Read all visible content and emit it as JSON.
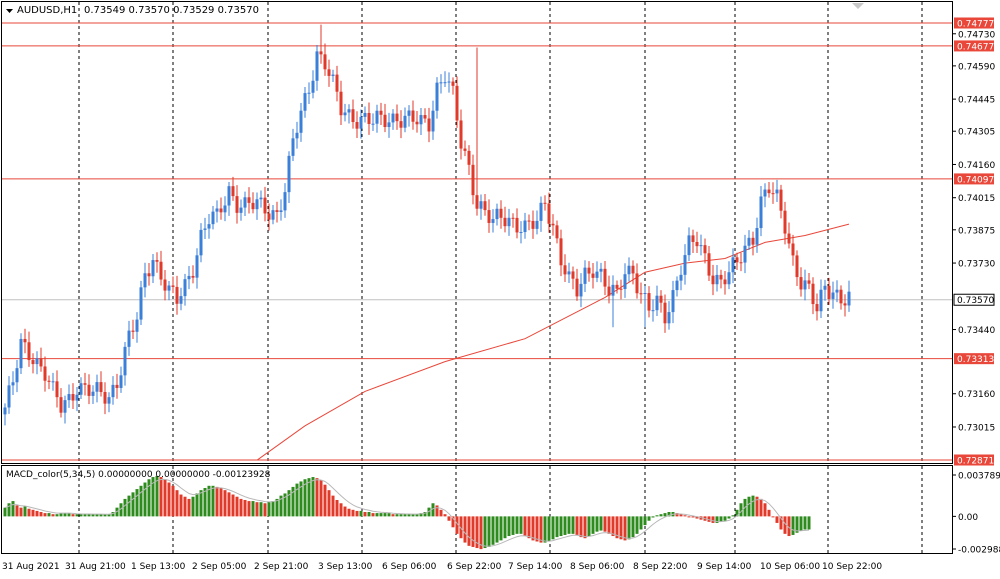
{
  "header": {
    "symbol": "AUDUSD,H1",
    "ohlc": "0.73549 0.73570 0.73529 0.73570"
  },
  "macd": {
    "label": "MACD_color(5,34,5) 0.00000000 0.00000000 -0.00123928",
    "ticks": [
      "0.0037891",
      "0.00",
      "-0.002988"
    ]
  },
  "colors": {
    "bull": "#3a7fd8",
    "bear": "#e03a2a",
    "level": "#e8473a",
    "ma": "#e8473a",
    "macd_pos": "#2e8b1e",
    "macd_neg": "#e03a2a",
    "signal": "#b8b8b8",
    "current": "#c0c0c0"
  },
  "chart_data": {
    "type": "candlestick",
    "symbol": "AUDUSD",
    "timeframe": "H1",
    "y_ticks": [
      0.7473,
      0.7459,
      0.74445,
      0.74305,
      0.7416,
      0.74015,
      0.73875,
      0.7373,
      0.7344,
      0.7316,
      0.73015
    ],
    "ylim": [
      0.72871,
      0.74777
    ],
    "levels": [
      0.74777,
      0.74677,
      0.74097,
      0.73313,
      0.72871
    ],
    "current_price": 0.7357,
    "x_labels": [
      "31 Aug 2021",
      "31 Aug 21:00",
      "1 Sep 13:00",
      "2 Sep 05:00",
      "2 Sep 21:00",
      "3 Sep 13:00",
      "6 Sep 06:00",
      "6 Sep 22:00",
      "7 Sep 14:00",
      "8 Sep 06:00",
      "8 Sep 22:00",
      "9 Sep 14:00",
      "10 Sep 06:00",
      "10 Sep 22:00"
    ],
    "close_path": [
      [
        0,
        0.731
      ],
      [
        2,
        0.732
      ],
      [
        4,
        0.7337
      ],
      [
        7,
        0.7333
      ],
      [
        10,
        0.7325
      ],
      [
        12,
        0.7316
      ],
      [
        14,
        0.731
      ],
      [
        16,
        0.7314
      ],
      [
        18,
        0.732
      ],
      [
        22,
        0.7316
      ],
      [
        26,
        0.7315
      ],
      [
        28,
        0.7322
      ],
      [
        31,
        0.734
      ],
      [
        33,
        0.7348
      ],
      [
        35,
        0.7368
      ],
      [
        37,
        0.7376
      ],
      [
        39,
        0.7368
      ],
      [
        41,
        0.736
      ],
      [
        43,
        0.7356
      ],
      [
        45,
        0.7363
      ],
      [
        47,
        0.7372
      ],
      [
        49,
        0.7385
      ],
      [
        51,
        0.7392
      ],
      [
        53,
        0.7392
      ],
      [
        56,
        0.7405
      ],
      [
        58,
        0.74
      ],
      [
        60,
        0.7398
      ],
      [
        63,
        0.7398
      ],
      [
        66,
        0.7396
      ],
      [
        68,
        0.7395
      ],
      [
        70,
        0.7405
      ],
      [
        72,
        0.7425
      ],
      [
        74,
        0.7438
      ],
      [
        76,
        0.745
      ],
      [
        78,
        0.7465
      ],
      [
        80,
        0.746
      ],
      [
        82,
        0.745
      ],
      [
        84,
        0.744
      ],
      [
        86,
        0.7438
      ],
      [
        89,
        0.7436
      ],
      [
        92,
        0.7434
      ],
      [
        95,
        0.7436
      ],
      [
        98,
        0.7437
      ],
      [
        101,
        0.7435
      ],
      [
        104,
        0.7434
      ],
      [
        106,
        0.7435
      ],
      [
        108,
        0.745
      ],
      [
        110,
        0.7455
      ],
      [
        112,
        0.7445
      ],
      [
        114,
        0.7425
      ],
      [
        116,
        0.7415
      ],
      [
        118,
        0.74
      ],
      [
        120,
        0.7395
      ],
      [
        122,
        0.739
      ],
      [
        124,
        0.7393
      ],
      [
        127,
        0.7392
      ],
      [
        130,
        0.7388
      ],
      [
        133,
        0.739
      ],
      [
        135,
        0.74
      ],
      [
        137,
        0.739
      ],
      [
        139,
        0.7375
      ],
      [
        141,
        0.7365
      ],
      [
        143,
        0.736
      ],
      [
        145,
        0.7368
      ],
      [
        147,
        0.7372
      ],
      [
        149,
        0.7368
      ],
      [
        151,
        0.736
      ],
      [
        153,
        0.7358
      ],
      [
        155,
        0.737
      ],
      [
        157,
        0.737
      ],
      [
        159,
        0.736
      ],
      [
        161,
        0.7352
      ],
      [
        163,
        0.7355
      ],
      [
        165,
        0.735
      ],
      [
        167,
        0.736
      ],
      [
        169,
        0.7372
      ],
      [
        171,
        0.738
      ],
      [
        173,
        0.7382
      ],
      [
        175,
        0.7375
      ],
      [
        177,
        0.7368
      ],
      [
        179,
        0.7365
      ],
      [
        181,
        0.7368
      ],
      [
        183,
        0.7372
      ],
      [
        185,
        0.738
      ],
      [
        187,
        0.7385
      ],
      [
        189,
        0.74
      ],
      [
        191,
        0.7405
      ],
      [
        193,
        0.74
      ],
      [
        195,
        0.739
      ],
      [
        197,
        0.7375
      ],
      [
        199,
        0.7365
      ],
      [
        201,
        0.736
      ],
      [
        203,
        0.7352
      ],
      [
        205,
        0.7363
      ],
      [
        207,
        0.7362
      ],
      [
        209,
        0.7357
      ],
      [
        211,
        0.7357
      ]
    ],
    "spikes": [
      [
        79,
        0.7477
      ],
      [
        118,
        0.7467
      ],
      [
        152,
        0.7345
      ],
      [
        160,
        0.7345
      ]
    ],
    "ma_path": [
      [
        63,
        0.7287
      ],
      [
        75,
        0.7302
      ],
      [
        90,
        0.7317
      ],
      [
        110,
        0.733
      ],
      [
        130,
        0.734
      ],
      [
        150,
        0.7358
      ],
      [
        160,
        0.7369
      ],
      [
        170,
        0.7373
      ],
      [
        180,
        0.7375
      ],
      [
        190,
        0.7382
      ],
      [
        200,
        0.7385
      ],
      [
        211,
        0.739
      ]
    ],
    "macd_values": [
      0.0008,
      0.0012,
      0.0014,
      0.001,
      0.0008,
      0.0009,
      0.0007,
      0.0006,
      0.0005,
      0.0004,
      0.0003,
      0.0003,
      0.0002,
      0.0002,
      0.0003,
      0.0003,
      0.0003,
      0.0002,
      0.0002,
      0.0002,
      0.0002,
      0.0002,
      0.0002,
      0.0002,
      0.0002,
      0.0002,
      0.0002,
      0.0004,
      0.0008,
      0.0012,
      0.0016,
      0.0019,
      0.0022,
      0.0025,
      0.0028,
      0.0031,
      0.0034,
      0.0036,
      0.0037,
      0.0036,
      0.0034,
      0.0031,
      0.0028,
      0.0024,
      0.002,
      0.0018,
      0.0016,
      0.0018,
      0.0021,
      0.0024,
      0.0026,
      0.0028,
      0.0028,
      0.0027,
      0.0026,
      0.0024,
      0.0022,
      0.002,
      0.0018,
      0.0016,
      0.0015,
      0.0014,
      0.0014,
      0.0013,
      0.0013,
      0.0012,
      0.0013,
      0.0014,
      0.0016,
      0.0019,
      0.0021,
      0.0024,
      0.0027,
      0.003,
      0.0032,
      0.0034,
      0.0035,
      0.0036,
      0.0035,
      0.0033,
      0.0029,
      0.0024,
      0.0019,
      0.0015,
      0.0012,
      0.0009,
      0.0007,
      0.0006,
      0.0005,
      0.0005,
      0.0004,
      0.0004,
      0.0003,
      0.0003,
      0.0003,
      0.0003,
      0.0003,
      0.0002,
      0.0002,
      0.0002,
      0.0002,
      0.0002,
      0.0002,
      0.0002,
      0.0003,
      0.0004,
      0.0008,
      0.0012,
      0.001,
      0.0006,
      0.0002,
      -0.0004,
      -0.001,
      -0.0016,
      -0.002,
      -0.0024,
      -0.0027,
      -0.0028,
      -0.0029,
      -0.003,
      -0.0029,
      -0.0028,
      -0.0026,
      -0.0024,
      -0.0022,
      -0.002,
      -0.0018,
      -0.0017,
      -0.0016,
      -0.0016,
      -0.0018,
      -0.002,
      -0.0022,
      -0.0023,
      -0.0024,
      -0.0024,
      -0.0023,
      -0.0021,
      -0.0019,
      -0.0018,
      -0.0017,
      -0.0016,
      -0.0016,
      -0.0017,
      -0.0019,
      -0.002,
      -0.0018,
      -0.0016,
      -0.0014,
      -0.0013,
      -0.0014,
      -0.0016,
      -0.0018,
      -0.002,
      -0.0021,
      -0.0022,
      -0.0021,
      -0.0019,
      -0.0016,
      -0.0012,
      -0.0008,
      -0.0004,
      -0.0001,
      0.0001,
      0.0002,
      0.0003,
      0.0004,
      0.0004,
      0.0003,
      0.0002,
      0.0001,
      0.0,
      -0.0001,
      -0.0002,
      -0.0003,
      -0.0004,
      -0.0005,
      -0.0006,
      -0.0006,
      -0.0005,
      -0.0004,
      -0.0002,
      0.0001,
      0.0006,
      0.0012,
      0.0016,
      0.0018,
      0.0019,
      0.0018,
      0.0016,
      0.0012,
      0.0006,
      0.0,
      -0.0006,
      -0.0012,
      -0.0016,
      -0.0018,
      -0.0017,
      -0.0015,
      -0.0013,
      -0.0012,
      -0.0012
    ]
  }
}
